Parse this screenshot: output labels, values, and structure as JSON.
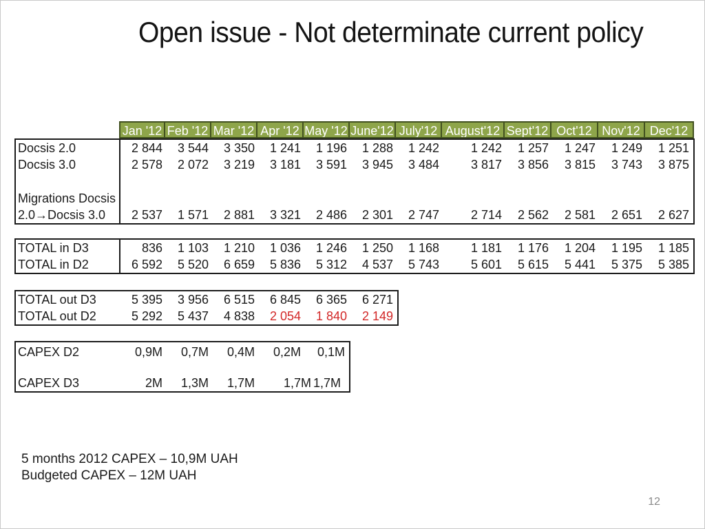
{
  "slide": {
    "title": "Open issue - Not determinate current policy",
    "page_number": "12",
    "notes": [
      "5 months 2012 CAPEX – 10,9M UAH",
      "Budgeted CAPEX – 12M UAH"
    ]
  },
  "colors": {
    "header_fill": "#8EA54A",
    "header_text": "#FFFFFF",
    "alert_red": "#D22727"
  },
  "months": [
    "Jan '12",
    "Feb '12",
    "Mar '12",
    "Apr '12",
    "May '12",
    "June'12",
    "July'12",
    "August'12",
    "Sept'12",
    "Oct'12",
    "Nov'12",
    "Dec'12"
  ],
  "tables": {
    "migration": {
      "rows": [
        {
          "label_lines": [
            "Docsis 2.0"
          ],
          "values": [
            "2 844",
            "3 544",
            "3 350",
            "1 241",
            "1 196",
            "1 288",
            "1 242",
            "1 242",
            "1 257",
            "1 247",
            "1 249",
            "1 251"
          ]
        },
        {
          "label_lines": [
            "Docsis 3.0"
          ],
          "values": [
            "2 578",
            "2 072",
            "3 219",
            "3 181",
            "3 591",
            "3 945",
            "3 484",
            "3 817",
            "3 856",
            "3 815",
            "3 743",
            "3 875"
          ]
        },
        {
          "label_lines": [
            "Migrations Docsis",
            "2.0→Docsis 3.0"
          ],
          "values": [
            "2 537",
            "1 571",
            "2 881",
            "3 321",
            "2 486",
            "2 301",
            "2 747",
            "2 714",
            "2 562",
            "2 581",
            "2 651",
            "2 627"
          ]
        }
      ]
    },
    "totals_in": {
      "rows": [
        {
          "label_lines": [
            "TOTAL in D3"
          ],
          "values": [
            "836",
            "1 103",
            "1 210",
            "1 036",
            "1 246",
            "1 250",
            "1 168",
            "1 181",
            "1 176",
            "1 204",
            "1 195",
            "1 185"
          ]
        },
        {
          "label_lines": [
            "TOTAL in D2"
          ],
          "values": [
            "6 592",
            "5 520",
            "6 659",
            "5 836",
            "5 312",
            "4 537",
            "5 743",
            "5 601",
            "5 615",
            "5 441",
            "5 375",
            "5 385"
          ]
        }
      ]
    },
    "totals_out": {
      "rows": [
        {
          "label_lines": [
            "TOTAL out D3"
          ],
          "values": [
            "5 395",
            "3 956",
            "6 515",
            "6 845",
            "6 365",
            "6 271"
          ]
        },
        {
          "label_lines": [
            "TOTAL out D2"
          ],
          "values": [
            "5 292",
            "5 437",
            "4 838",
            "2 054",
            "1 840",
            "2 149"
          ],
          "red_indices": [
            3,
            4,
            5
          ]
        }
      ]
    },
    "capex": {
      "rows": [
        {
          "label_lines": [
            "CAPEX D2"
          ],
          "values": [
            "0,9M",
            "0,7M",
            "0,4M",
            "0,2M",
            "0,1M"
          ]
        },
        {
          "label_lines": [
            ""
          ],
          "values": []
        },
        {
          "label_lines": [
            "CAPEX D3"
          ],
          "values": [
            "2M",
            "1,3M",
            "1,7M",
            "1,7M",
            "1,7M"
          ]
        }
      ]
    }
  }
}
